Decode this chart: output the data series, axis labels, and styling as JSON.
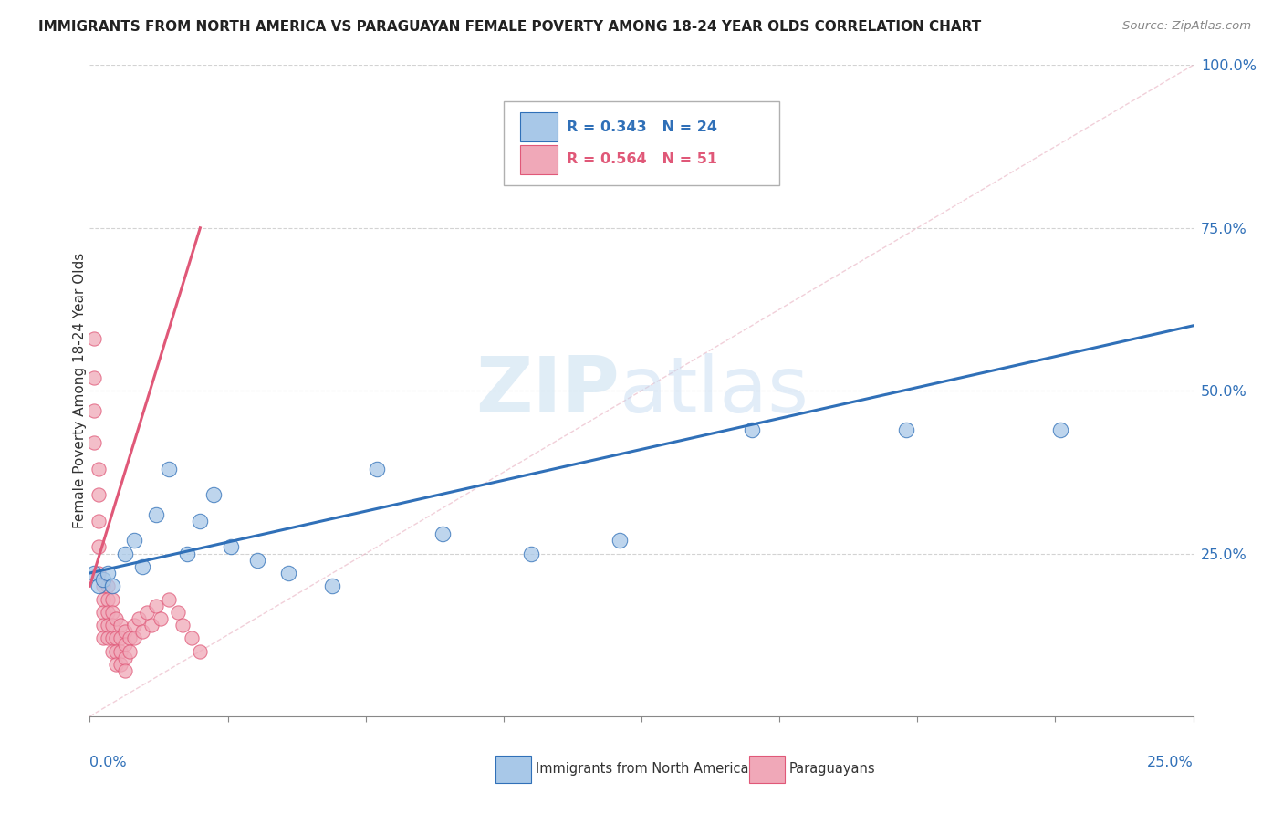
{
  "title": "IMMIGRANTS FROM NORTH AMERICA VS PARAGUAYAN FEMALE POVERTY AMONG 18-24 YEAR OLDS CORRELATION CHART",
  "source": "Source: ZipAtlas.com",
  "ylabel": "Female Poverty Among 18-24 Year Olds",
  "y_tick_labels": [
    "",
    "25.0%",
    "50.0%",
    "75.0%",
    "100.0%"
  ],
  "x_lim": [
    0.0,
    0.25
  ],
  "y_lim": [
    0.0,
    1.0
  ],
  "watermark_zip": "ZIP",
  "watermark_atlas": "atlas",
  "legend_blue_label": "Immigrants from North America",
  "legend_pink_label": "Paraguayans",
  "legend_blue_R": "R = 0.343",
  "legend_blue_N": "N = 24",
  "legend_pink_R": "R = 0.564",
  "legend_pink_N": "N = 51",
  "blue_color": "#a8c8e8",
  "pink_color": "#f0a8b8",
  "blue_line_color": "#3070b8",
  "pink_line_color": "#e05878",
  "blue_scatter_x": [
    0.001,
    0.002,
    0.003,
    0.004,
    0.005,
    0.008,
    0.01,
    0.012,
    0.015,
    0.018,
    0.022,
    0.025,
    0.028,
    0.032,
    0.038,
    0.045,
    0.055,
    0.065,
    0.08,
    0.1,
    0.12,
    0.15,
    0.185,
    0.22
  ],
  "blue_scatter_y": [
    0.22,
    0.2,
    0.21,
    0.22,
    0.2,
    0.25,
    0.27,
    0.23,
    0.31,
    0.38,
    0.25,
    0.3,
    0.34,
    0.26,
    0.24,
    0.22,
    0.2,
    0.38,
    0.28,
    0.25,
    0.27,
    0.44,
    0.44,
    0.44
  ],
  "pink_scatter_x": [
    0.001,
    0.001,
    0.001,
    0.001,
    0.002,
    0.002,
    0.002,
    0.002,
    0.002,
    0.003,
    0.003,
    0.003,
    0.003,
    0.003,
    0.004,
    0.004,
    0.004,
    0.004,
    0.004,
    0.005,
    0.005,
    0.005,
    0.005,
    0.005,
    0.006,
    0.006,
    0.006,
    0.006,
    0.007,
    0.007,
    0.007,
    0.007,
    0.008,
    0.008,
    0.008,
    0.008,
    0.009,
    0.009,
    0.01,
    0.01,
    0.011,
    0.012,
    0.013,
    0.014,
    0.015,
    0.016,
    0.018,
    0.02,
    0.021,
    0.023,
    0.025
  ],
  "pink_scatter_y": [
    0.58,
    0.52,
    0.47,
    0.42,
    0.38,
    0.34,
    0.3,
    0.26,
    0.22,
    0.2,
    0.18,
    0.16,
    0.14,
    0.12,
    0.2,
    0.18,
    0.16,
    0.14,
    0.12,
    0.18,
    0.16,
    0.14,
    0.12,
    0.1,
    0.15,
    0.12,
    0.1,
    0.08,
    0.14,
    0.12,
    0.1,
    0.08,
    0.13,
    0.11,
    0.09,
    0.07,
    0.12,
    0.1,
    0.14,
    0.12,
    0.15,
    0.13,
    0.16,
    0.14,
    0.17,
    0.15,
    0.18,
    0.16,
    0.14,
    0.12,
    0.1
  ],
  "blue_trend_x": [
    0.0,
    0.25
  ],
  "blue_trend_y": [
    0.22,
    0.6
  ],
  "pink_trend_x": [
    0.0,
    0.025
  ],
  "pink_trend_y": [
    0.2,
    0.75
  ]
}
